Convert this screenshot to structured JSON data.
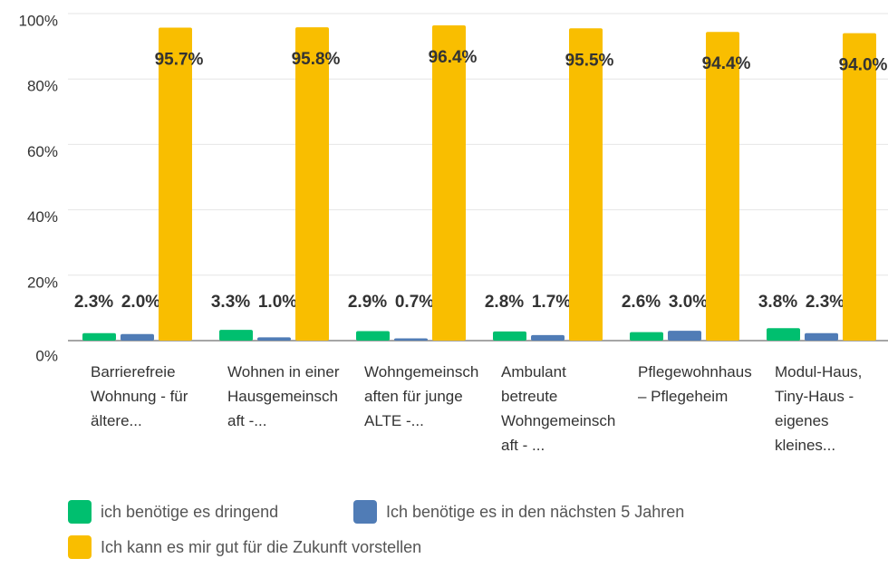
{
  "chart_data": {
    "type": "bar",
    "categories": [
      "Barrierefreie Wohnung - für ältere...",
      "Wohnen in einer Hausgemeinschaft -...",
      "Wohngemeinschaften für junge ALTE -...",
      "Ambulant betreute Wohngemeinschaft - ...",
      "Pflegewohnhaus – Pflegeheim",
      "Modul-Haus, Tiny-Haus - eigenes kleines..."
    ],
    "series": [
      {
        "name": "ich benötige es dringend",
        "color": "#00bf6f",
        "values": [
          2.3,
          3.3,
          2.9,
          2.8,
          2.6,
          3.8
        ],
        "value_labels": [
          "2.3%",
          "3.3%",
          "2.9%",
          "2.8%",
          "2.6%",
          "3.8%"
        ]
      },
      {
        "name": "Ich benötige es in den nächsten 5 Jahren",
        "color": "#507cb6",
        "values": [
          2.0,
          1.0,
          0.7,
          1.7,
          3.0,
          2.3
        ],
        "value_labels": [
          "2.0%",
          "1.0%",
          "0.7%",
          "1.7%",
          "3.0%",
          "2.3%"
        ]
      },
      {
        "name": "Ich kann es mir gut für die Zukunft vorstellen",
        "color": "#f9be00",
        "values": [
          95.7,
          95.8,
          96.4,
          95.5,
          94.4,
          94.0
        ],
        "value_labels": [
          "95.7%",
          "95.8%",
          "96.4%",
          "95.5%",
          "94.4%",
          "94.0%"
        ]
      }
    ],
    "ylim": [
      0,
      100
    ],
    "yticks": [
      {
        "value": 0,
        "label": "0%"
      },
      {
        "value": 20,
        "label": "20%"
      },
      {
        "value": 40,
        "label": "40%"
      },
      {
        "value": 60,
        "label": "60%"
      },
      {
        "value": 80,
        "label": "80%"
      },
      {
        "value": 100,
        "label": "100%"
      }
    ],
    "grid": true
  }
}
